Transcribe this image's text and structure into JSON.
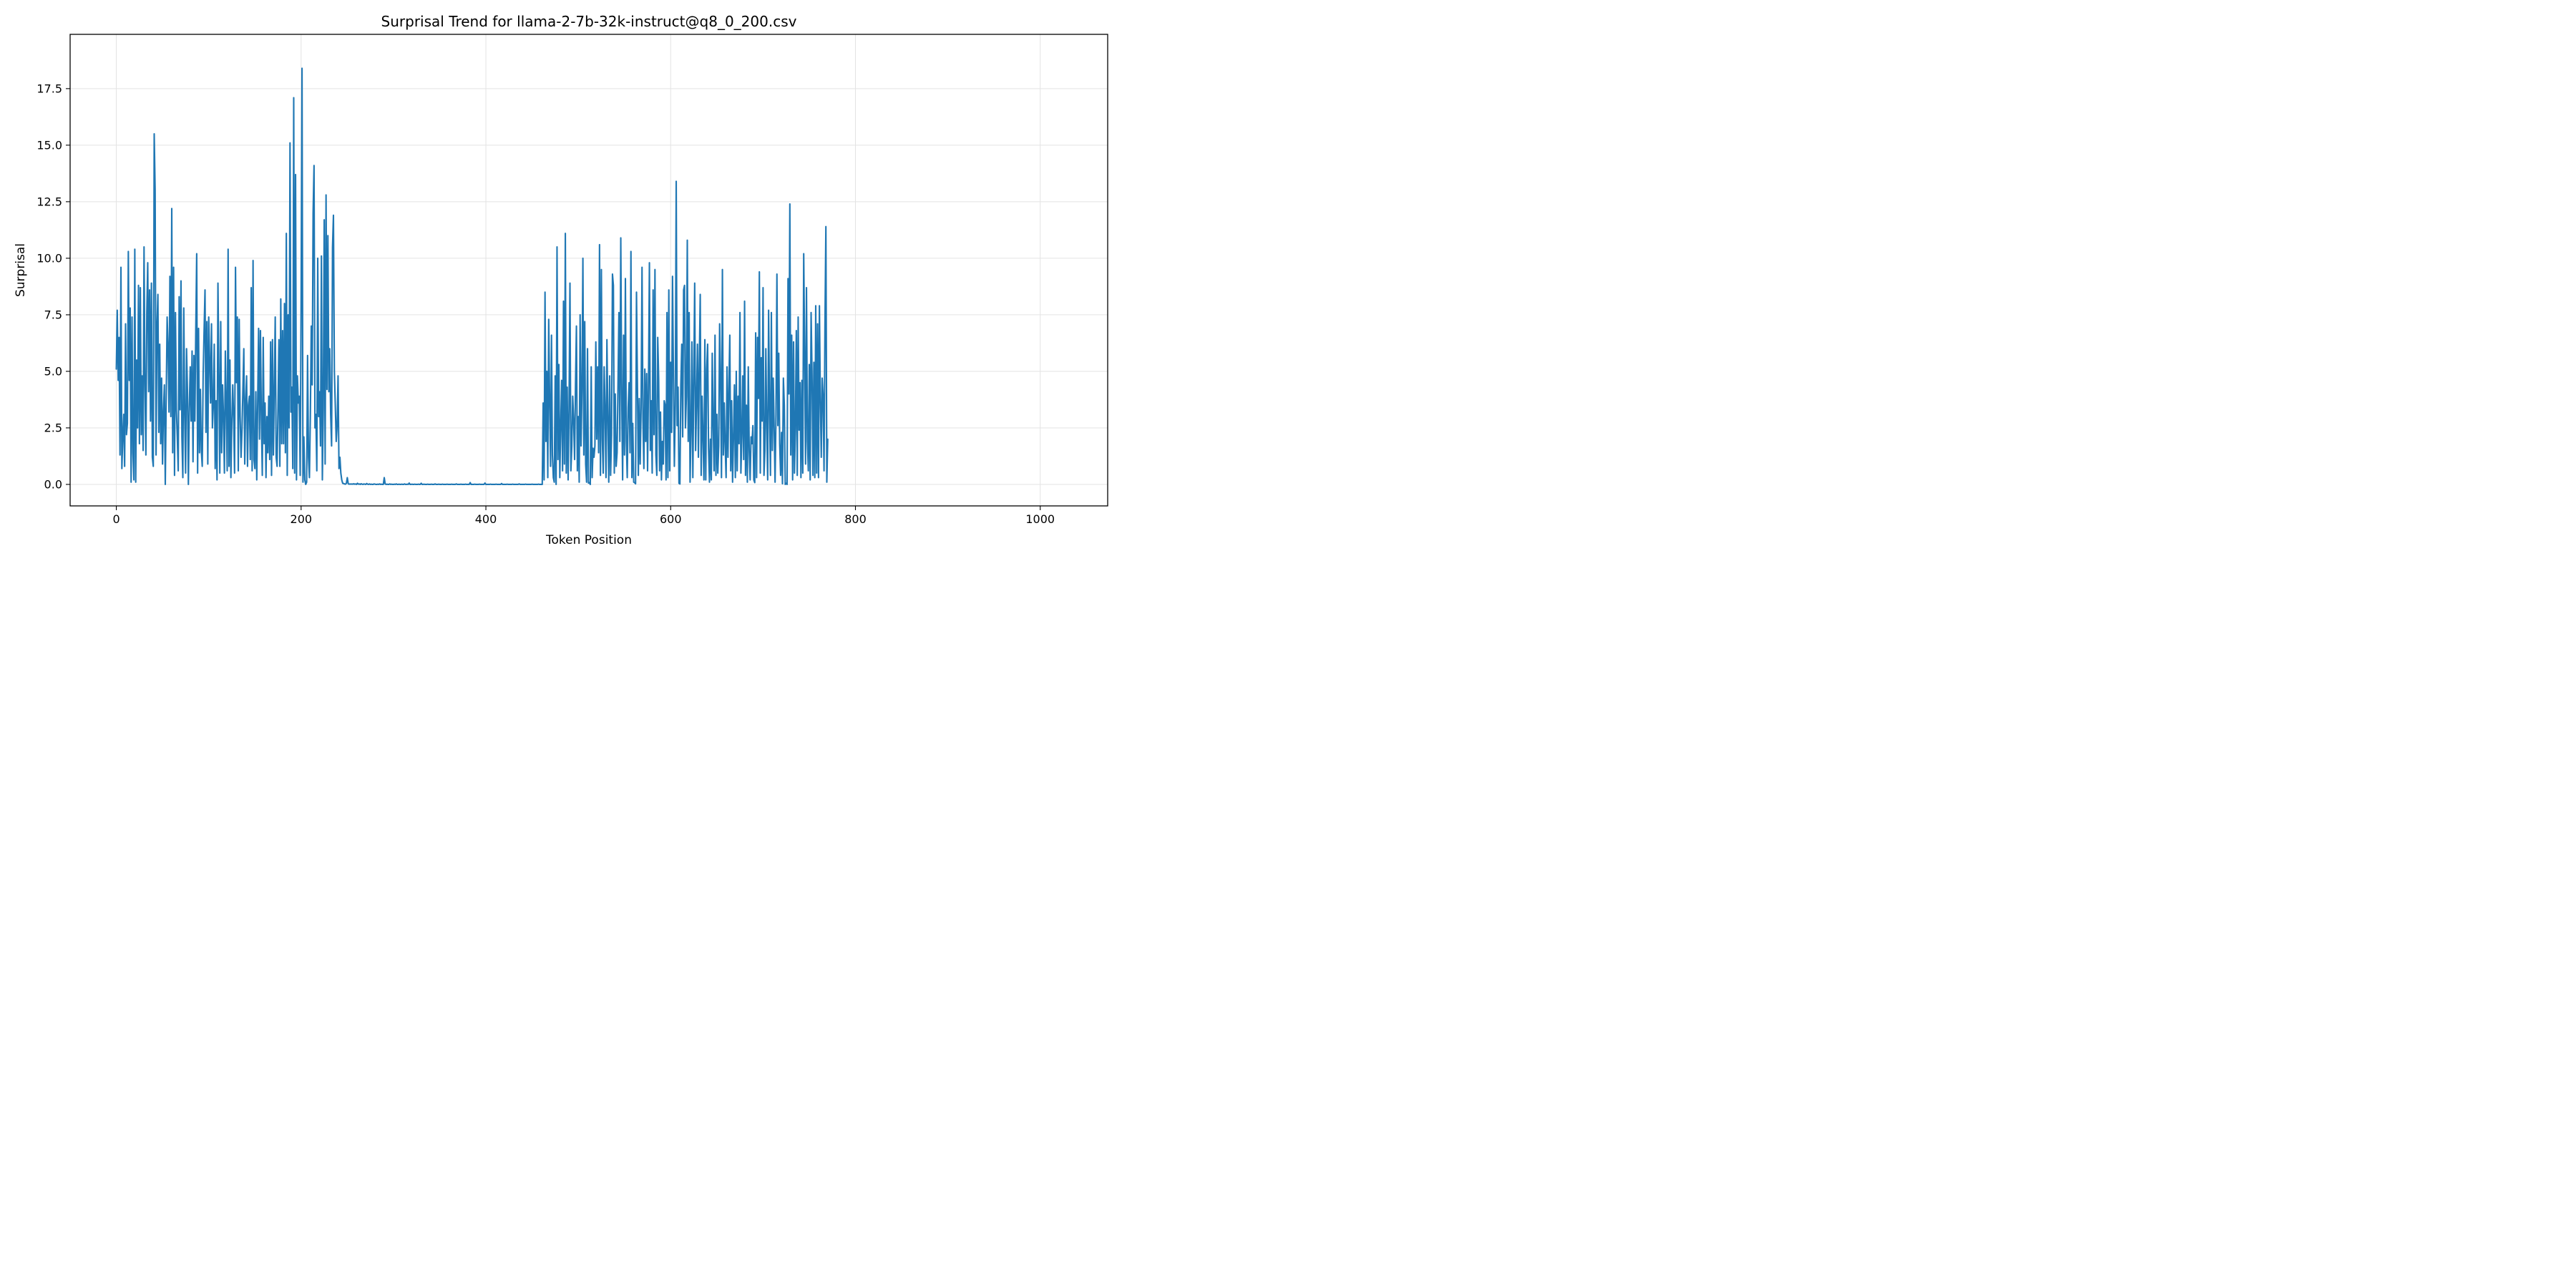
{
  "chart_data": {
    "type": "line",
    "title": "Surprisal Trend for llama-2-7b-32k-instruct@q8_0_200.csv",
    "xlabel": "Token Position",
    "ylabel": "Surprisal",
    "xlim": [
      -50,
      1073
    ],
    "ylim": [
      -0.95,
      19.9
    ],
    "xticks": [
      0,
      200,
      400,
      600,
      800,
      1000
    ],
    "xtick_labels": [
      "0",
      "200",
      "400",
      "600",
      "800",
      "1000"
    ],
    "yticks": [
      0,
      2.5,
      5,
      7.5,
      10,
      12.5,
      15,
      17.5
    ],
    "ytick_labels": [
      "0.0",
      "2.5",
      "5.0",
      "7.5",
      "10.0",
      "12.5",
      "15.0",
      "17.5"
    ],
    "grid": true,
    "series": [
      {
        "color": "#1f77b4",
        "x_start": 0,
        "x_step": 1,
        "values": [
          5.1,
          7.7,
          4.6,
          6.5,
          1.3,
          9.6,
          0.7,
          2.1,
          3.1,
          0.8,
          7.1,
          2.2,
          2.7,
          10.3,
          4.6,
          7.8,
          0.1,
          7.4,
          1.4,
          0.2,
          10.4,
          0.1,
          5.5,
          2.5,
          8.8,
          1.8,
          8.7,
          2.2,
          4.8,
          1.5,
          10.5,
          4.4,
          1.3,
          7.6,
          9.8,
          4.1,
          8.6,
          2.8,
          8.9,
          1.2,
          0.8,
          15.5,
          13.0,
          1.3,
          7.0,
          8.4,
          2.3,
          6.2,
          1.8,
          4.7,
          0.9,
          3.2,
          4.4,
          0.0,
          3.8,
          7.4,
          6.1,
          3.2,
          9.2,
          3.0,
          12.2,
          1.4,
          9.6,
          0.4,
          7.6,
          3.3,
          2.1,
          0.6,
          8.3,
          3.3,
          9.0,
          2.1,
          0.3,
          7.8,
          3.1,
          0.5,
          6.0,
          4.1,
          0.0,
          3.4,
          5.2,
          2.8,
          5.9,
          1.0,
          5.7,
          2.8,
          6.8,
          10.2,
          0.5,
          6.9,
          1.4,
          4.2,
          1.5,
          0.8,
          4.9,
          6.8,
          8.6,
          2.3,
          7.2,
          0.9,
          7.4,
          5.5,
          3.6,
          7.1,
          2.5,
          3.5,
          6.2,
          0.7,
          3.7,
          0.2,
          8.9,
          4.8,
          0.5,
          7.2,
          1.4,
          4.4,
          3.0,
          0.5,
          5.9,
          3.4,
          0.6,
          10.4,
          0.8,
          5.5,
          0.3,
          2.7,
          4.4,
          2.9,
          0.5,
          9.6,
          4.5,
          7.4,
          0.6,
          7.3,
          3.0,
          1.2,
          2.4,
          4.2,
          6.0,
          0.9,
          3.7,
          4.8,
          0.8,
          3.5,
          3.9,
          1.1,
          8.7,
          0.6,
          9.9,
          1.1,
          0.7,
          4.1,
          0.2,
          3.6,
          6.9,
          2.0,
          6.8,
          2.9,
          0.4,
          6.5,
          1.8,
          3.6,
          0.3,
          3.0,
          1.4,
          3.9,
          1.1,
          6.3,
          0.4,
          6.4,
          1.3,
          4.2,
          7.4,
          1.2,
          0.8,
          3.4,
          6.4,
          0.8,
          8.2,
          1.8,
          6.8,
          1.8,
          8.0,
          1.4,
          11.1,
          0.4,
          7.5,
          2.5,
          15.1,
          3.2,
          4.3,
          0.7,
          17.1,
          0.5,
          13.7,
          0.2,
          4.8,
          3.6,
          3.9,
          0.4,
          8.0,
          18.4,
          0.1,
          2.1,
          0.2,
          0.0,
          0.1,
          5.7,
          1.2,
          0.3,
          3.0,
          7.0,
          4.4,
          12.0,
          14.1,
          2.5,
          3.1,
          0.6,
          10.0,
          3.0,
          4.1,
          1.7,
          10.1,
          0.2,
          3.3,
          11.7,
          0.9,
          12.8,
          4.2,
          11.0,
          4.1,
          6.0,
          3.1,
          1.7,
          10.5,
          11.9,
          5.0,
          3.5,
          1.9,
          2.6,
          4.8,
          0.7,
          1.2,
          0.5,
          0.2,
          0.05,
          0.04,
          0.02,
          0.01,
          0.05,
          0.3,
          0.03,
          0.01,
          0.02,
          0.01,
          0.02,
          0.01,
          0.03,
          0.01,
          0.02,
          0.0,
          0.05,
          0.01,
          0.02,
          0.0,
          0.03,
          0.01,
          0.0,
          0.02,
          0.01,
          0.0,
          0.04,
          0.01,
          0.0,
          0.02,
          0.0,
          0.01,
          0.0,
          0.0,
          0.02,
          0.01,
          0.0,
          0.0,
          0.01,
          0.0,
          0.02,
          0.0,
          0.01,
          0.0,
          0.0,
          0.3,
          0.02,
          0.0,
          0.01,
          0.0,
          0.0,
          0.02,
          0.0,
          0.01,
          0.0,
          0.0,
          0.01,
          0.0,
          0.02,
          0.0,
          0.0,
          0.01,
          0.0,
          0.0,
          0.01,
          0.0,
          0.0,
          0.02,
          0.0,
          0.0,
          0.01,
          0.0,
          0.06,
          0.0,
          0.0,
          0.01,
          0.0,
          0.0,
          0.01,
          0.0,
          0.0,
          0.0,
          0.01,
          0.0,
          0.0,
          0.05,
          0.0,
          0.0,
          0.01,
          0.0,
          0.0,
          0.0,
          0.01,
          0.0,
          0.0,
          0.0,
          0.01,
          0.0,
          0.0,
          0.0,
          0.02,
          0.0,
          0.0,
          0.0,
          0.01,
          0.0,
          0.0,
          0.0,
          0.01,
          0.0,
          0.0,
          0.0,
          0.0,
          0.01,
          0.0,
          0.0,
          0.0,
          0.0,
          0.01,
          0.0,
          0.0,
          0.0,
          0.0,
          0.02,
          0.0,
          0.0,
          0.0,
          0.0,
          0.01,
          0.0,
          0.0,
          0.0,
          0.0,
          0.01,
          0.0,
          0.0,
          0.0,
          0.0,
          0.08,
          0.0,
          0.0,
          0.0,
          0.0,
          0.01,
          0.0,
          0.0,
          0.0,
          0.0,
          0.01,
          0.0,
          0.0,
          0.0,
          0.0,
          0.0,
          0.06,
          0.0,
          0.0,
          0.0,
          0.0,
          0.0,
          0.01,
          0.0,
          0.0,
          0.0,
          0.0,
          0.0,
          0.01,
          0.0,
          0.0,
          0.0,
          0.0,
          0.0,
          0.04,
          0.0,
          0.0,
          0.0,
          0.0,
          0.0,
          0.01,
          0.0,
          0.0,
          0.0,
          0.0,
          0.0,
          0.01,
          0.0,
          0.0,
          0.0,
          0.0,
          0.0,
          0.0,
          0.02,
          0.0,
          0.0,
          0.0,
          0.0,
          0.0,
          0.0,
          0.01,
          0.0,
          0.0,
          0.0,
          0.0,
          0.0,
          0.0,
          0.01,
          0.0,
          0.0,
          0.0,
          0.0,
          0.0,
          0.0,
          0.01,
          0.0,
          0.0,
          0.0,
          0.0,
          3.6,
          0.2,
          8.5,
          1.9,
          5.0,
          0.3,
          7.3,
          3.7,
          0.8,
          6.6,
          1.3,
          0.3,
          0.1,
          4.8,
          0.0,
          10.5,
          1.1,
          5.3,
          0.3,
          2.6,
          4.6,
          0.6,
          8.1,
          0.9,
          11.1,
          0.5,
          4.3,
          0.2,
          3.3,
          8.9,
          0.6,
          1.7,
          3.9,
          2.8,
          1.1,
          4.4,
          7.0,
          0.6,
          3.0,
          0.1,
          7.5,
          1.7,
          4.2,
          10.0,
          1.3,
          7.2,
          0.9,
          0.1,
          6.0,
          0.06,
          0.08,
          0.0,
          5.2,
          0.3,
          1.6,
          1.2,
          1.7,
          6.3,
          2.0,
          5.2,
          1.4,
          10.6,
          0.4,
          9.5,
          2.0,
          0.5,
          5.2,
          3.3,
          0.3,
          6.4,
          2.9,
          0.1,
          4.8,
          0.4,
          2.2,
          9.3,
          8.8,
          0.5,
          4.0,
          0.8,
          1.4,
          4.4,
          7.6,
          1.9,
          10.9,
          4.0,
          0.2,
          6.6,
          1.3,
          9.1,
          1.9,
          0.3,
          3.4,
          4.5,
          1.4,
          10.3,
          0.3,
          2.7,
          0.1,
          0.08,
          0.03,
          8.5,
          4.5,
          0.4,
          3.8,
          0.9,
          3.4,
          9.6,
          2.9,
          0.7,
          5.1,
          1.9,
          4.9,
          0.6,
          4.5,
          9.8,
          1.5,
          3.7,
          0.5,
          8.6,
          2.2,
          9.5,
          1.3,
          0.4,
          6.5,
          4.7,
          0.6,
          3.2,
          0.2,
          1.9,
          0.9,
          3.7,
          3.5,
          0.2,
          7.6,
          0.3,
          8.6,
          0.6,
          5.4,
          2.3,
          9.2,
          4.8,
          0.8,
          3.5,
          13.4,
          2.6,
          4.3,
          0.05,
          0.02,
          4.4,
          6.2,
          2.1,
          8.6,
          8.8,
          2.5,
          3.9,
          10.8,
          1.9,
          7.6,
          0.1,
          2.3,
          6.3,
          0.3,
          4.6,
          8.9,
          1.5,
          3.6,
          6.2,
          1.2,
          5.4,
          8.4,
          0.4,
          3.9,
          2.1,
          0.2,
          6.4,
          0.2,
          5.1,
          6.2,
          1.6,
          0.1,
          2.0,
          0.2,
          5.8,
          2.7,
          0.6,
          6.6,
          0.4,
          3.1,
          0.5,
          1.7,
          7.1,
          4.7,
          0.3,
          9.5,
          1.3,
          3.6,
          1.7,
          0.3,
          5.2,
          1.2,
          4.2,
          6.6,
          0.6,
          3.7,
          0.1,
          2.1,
          4.4,
          0.3,
          5.0,
          0.6,
          3.9,
          1.8,
          7.6,
          0.5,
          2.1,
          4.8,
          1.1,
          8.1,
          0.4,
          3.5,
          0.1,
          5.2,
          1.5,
          0.2,
          2.1,
          1.8,
          2.6,
          0.2,
          0.08,
          6.7,
          0.3,
          6.5,
          3.8,
          9.4,
          0.5,
          5.6,
          2.8,
          8.7,
          0.4,
          1.5,
          6.0,
          2.5,
          0.2,
          7.7,
          3.4,
          0.4,
          7.6,
          1.5,
          4.7,
          2.5,
          0.1,
          3.1,
          9.3,
          2.6,
          5.8,
          1.8,
          0.4,
          2.3,
          0.03,
          4.7,
          3.5,
          0.0,
          0.05,
          0.0,
          9.1,
          4.0,
          12.4,
          1.3,
          6.6,
          0.2,
          6.3,
          0.5,
          2.5,
          6.8,
          0.4,
          7.4,
          2.4,
          4.5,
          0.3,
          4.6,
          0.5,
          10.2,
          5.9,
          0.9,
          8.7,
          1.9,
          0.6,
          5.3,
          0.2,
          7.6,
          4.9,
          0.4,
          5.4,
          0.3,
          7.9,
          0.5,
          7.1,
          0.3,
          7.9,
          3.8,
          1.2,
          4.7,
          3.9,
          0.6,
          7.1,
          11.4,
          0.1,
          2.0
        ]
      }
    ]
  }
}
